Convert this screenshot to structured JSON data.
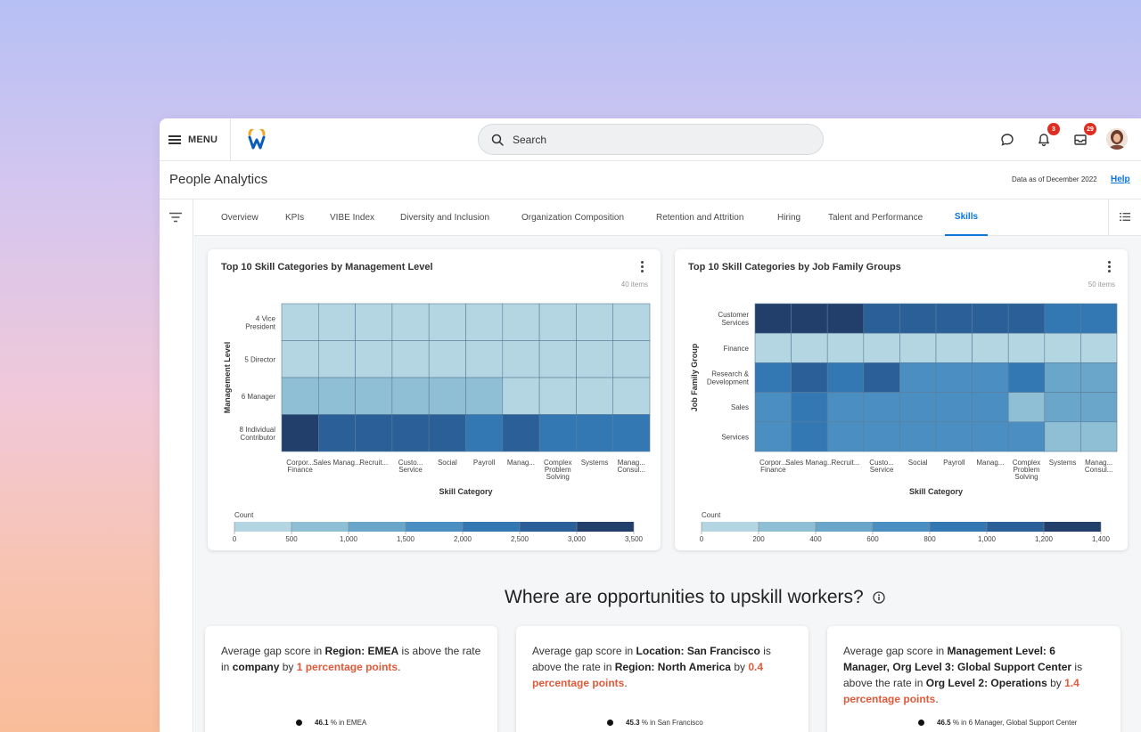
{
  "topbar": {
    "menu_label": "MENU",
    "search_placeholder": "Search",
    "notifications_count": "3",
    "inbox_count": "29"
  },
  "header": {
    "title": "People Analytics",
    "as_of": "Data as of December 2022",
    "help_label": "Help"
  },
  "tabs": [
    {
      "label": "Overview",
      "active": false
    },
    {
      "label": "KPIs",
      "active": false
    },
    {
      "label": "VIBE Index",
      "active": false
    },
    {
      "label": "Diversity and Inclusion",
      "active": false
    },
    {
      "label": "Organization Composition",
      "active": false
    },
    {
      "label": "Retention and Attrition",
      "active": false
    },
    {
      "label": "Hiring",
      "active": false
    },
    {
      "label": "Talent and Performance",
      "active": false
    },
    {
      "label": "Skills",
      "active": true
    }
  ],
  "colors": {
    "accent": "#0875e1",
    "highlight": "#e05a3a",
    "badge": "#de2e21",
    "scale": [
      "#b4d6e2",
      "#8fbfd5",
      "#6aa6ca",
      "#4b8fc2",
      "#3478b3",
      "#2a5f98",
      "#223f6b"
    ]
  },
  "chart_data": [
    {
      "type": "heatmap",
      "title": "Top 10 Skill Categories by Management Level",
      "items_label": "40 items",
      "xlabel": "Skill Category",
      "ylabel": "Management Level",
      "x_categories": [
        "Corpor... Finance",
        "Sales Manag...",
        "Recruit...",
        "Custo... Service",
        "Social",
        "Payroll",
        "Manag...",
        "Complex Problem Solving",
        "Systems",
        "Manag... Consul..."
      ],
      "y_categories": [
        "4 Vice President",
        "5 Director",
        "6 Manager",
        "8 Individual Contributor"
      ],
      "values": [
        [
          350,
          350,
          350,
          350,
          350,
          350,
          350,
          350,
          350,
          350
        ],
        [
          350,
          350,
          350,
          350,
          350,
          350,
          350,
          350,
          350,
          350
        ],
        [
          800,
          800,
          800,
          800,
          800,
          800,
          350,
          350,
          350,
          350
        ],
        [
          3400,
          2700,
          2700,
          2700,
          2700,
          2200,
          2900,
          2200,
          2200,
          2200
        ]
      ],
      "legend_title": "Count",
      "legend_ticks": [
        "0",
        "500",
        "1,000",
        "1,500",
        "2,000",
        "2,500",
        "3,000",
        "3,500"
      ],
      "range": [
        0,
        3500
      ]
    },
    {
      "type": "heatmap",
      "title": "Top 10 Skill Categories by Job Family Groups",
      "items_label": "50 items",
      "xlabel": "Skill Category",
      "ylabel": "Job Family Group",
      "x_categories": [
        "Corpor... Finance",
        "Sales Manag...",
        "Recruit...",
        "Custo... Service",
        "Social",
        "Payroll",
        "Manag...",
        "Complex Problem Solving",
        "Systems",
        "Manag... Consul..."
      ],
      "y_categories": [
        "Customer Services",
        "Finance",
        "Research & Development",
        "Sales",
        "Services"
      ],
      "values": [
        [
          1380,
          1380,
          1380,
          1050,
          1050,
          1000,
          1000,
          1000,
          850,
          850
        ],
        [
          80,
          80,
          80,
          80,
          80,
          80,
          80,
          80,
          80,
          80
        ],
        [
          850,
          1000,
          850,
          1000,
          650,
          650,
          650,
          850,
          500,
          500
        ],
        [
          650,
          850,
          650,
          650,
          650,
          650,
          650,
          300,
          500,
          500
        ],
        [
          650,
          850,
          650,
          650,
          650,
          650,
          650,
          650,
          300,
          300
        ]
      ],
      "legend_title": "Count",
      "legend_ticks": [
        "0",
        "200",
        "400",
        "600",
        "800",
        "1,000",
        "1,200",
        "1,400"
      ],
      "range": [
        0,
        1400
      ]
    }
  ],
  "section": {
    "heading": "Where are opportunities to upskill workers?"
  },
  "insights": [
    {
      "pre1": "Average gap score in ",
      "bold1": "Region: EMEA",
      "mid1": " is above the rate in ",
      "bold2": "company",
      "mid2": " by ",
      "hl": "1 percentage points",
      "end": ".",
      "mini_value": "46.1",
      "mini_label": "% in EMEA"
    },
    {
      "pre1": "Average gap score in ",
      "bold1": "Location: San Francisco",
      "mid1": " is above the rate in ",
      "bold2": "Region: North America",
      "mid2": " by ",
      "hl": "0.4 percentage points",
      "end": ".",
      "mini_value": "45.3",
      "mini_label": "% in San Francisco"
    },
    {
      "pre1": "Average gap score in ",
      "bold1": "Management Level: 6 Manager, Org Level 3: Global Support Center",
      "mid1": " is above the rate in ",
      "bold2": "Org Level 2: Operations",
      "mid2": " by ",
      "hl": "1.4 percentage points",
      "end": ".",
      "mini_value": "46.5",
      "mini_label": "% in 6 Manager, Global Support Center"
    }
  ]
}
